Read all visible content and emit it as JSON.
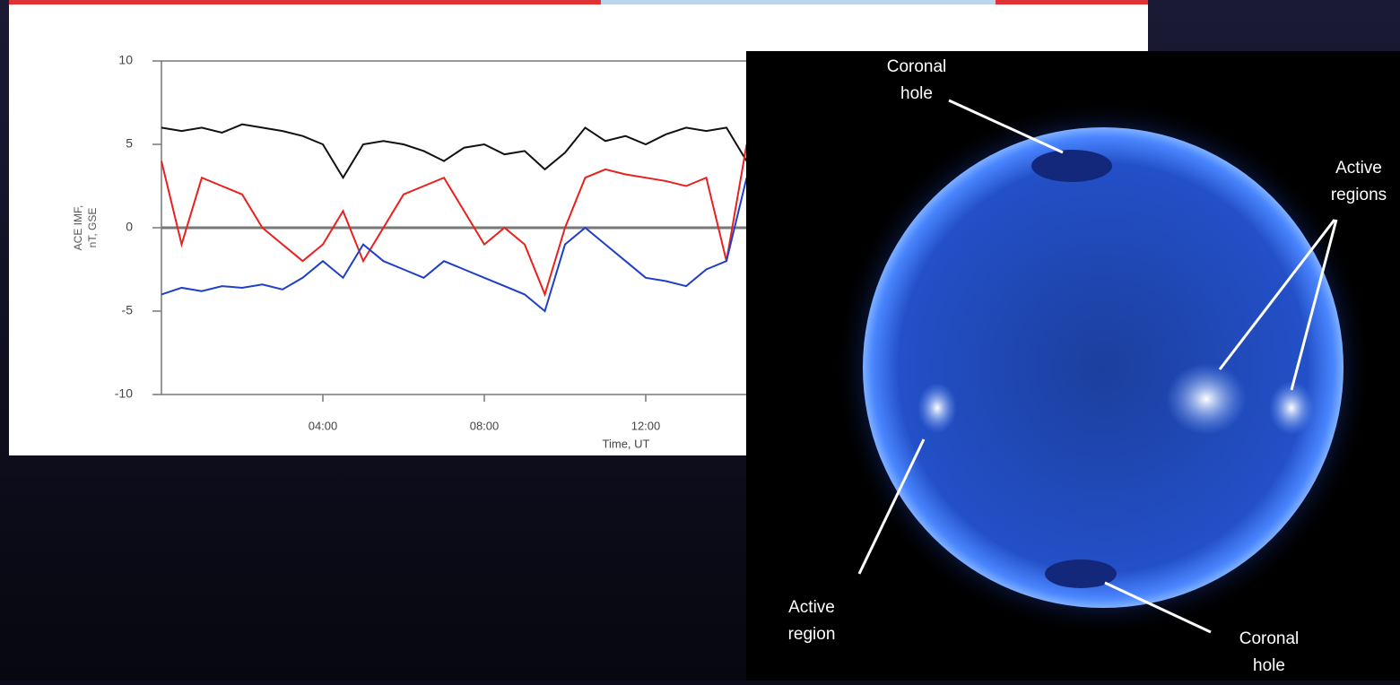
{
  "chart_data": {
    "type": "line",
    "ylabel": [
      "ACE IMF,",
      "nT, GSE"
    ],
    "xlabel": "Time, UT",
    "xlim": [
      0,
      24
    ],
    "xticks": [
      {
        "value": 4,
        "label": "04:00"
      },
      {
        "value": 8,
        "label": "08:00"
      },
      {
        "value": 12,
        "label": "12:00"
      }
    ],
    "ylim": [
      -10,
      10
    ],
    "yticks": [
      -10,
      -5,
      0,
      5,
      10
    ],
    "zero_line": true,
    "x": [
      0,
      0.5,
      1,
      1.5,
      2,
      2.5,
      3,
      3.5,
      4,
      4.5,
      5,
      5.5,
      6,
      6.5,
      7,
      7.5,
      8,
      8.5,
      9,
      9.5,
      10,
      10.5,
      11,
      11.5,
      12,
      12.5,
      13,
      13.5,
      14,
      14.5
    ],
    "series": [
      {
        "color": "#111111",
        "values": [
          6,
          5.8,
          6,
          5.7,
          6.2,
          6,
          5.8,
          5.5,
          5,
          3,
          5,
          5.2,
          5,
          4.6,
          4,
          4.8,
          5,
          4.4,
          4.6,
          3.5,
          4.5,
          6,
          5.2,
          5.5,
          5,
          5.6,
          6,
          5.8,
          6,
          4
        ]
      },
      {
        "color": "#e8201e",
        "values": [
          4,
          -1,
          3,
          2.5,
          2,
          0,
          -1,
          -2,
          -1,
          1,
          -2,
          0,
          2,
          2.5,
          3,
          1,
          -1,
          0,
          -1,
          -4,
          0,
          3,
          3.5,
          3.2,
          3,
          2.8,
          2.5,
          3,
          -2,
          5
        ]
      },
      {
        "color": "#1f3fc8",
        "values": [
          -4,
          -3.6,
          -3.8,
          -3.5,
          -3.6,
          -3.4,
          -3.7,
          -3,
          -2,
          -3,
          -1,
          -2,
          -2.5,
          -3,
          -2,
          -2.5,
          -3,
          -3.5,
          -4,
          -5,
          -1,
          0,
          -1,
          -2,
          -3,
          -3.2,
          -3.5,
          -2.5,
          -2,
          3
        ]
      }
    ]
  },
  "sun_image": {
    "annotations": [
      [
        "Coronal",
        "hole"
      ],
      [
        "Active",
        "regions"
      ],
      [
        "Active",
        "region"
      ],
      [
        "Coronal",
        "hole"
      ]
    ]
  }
}
